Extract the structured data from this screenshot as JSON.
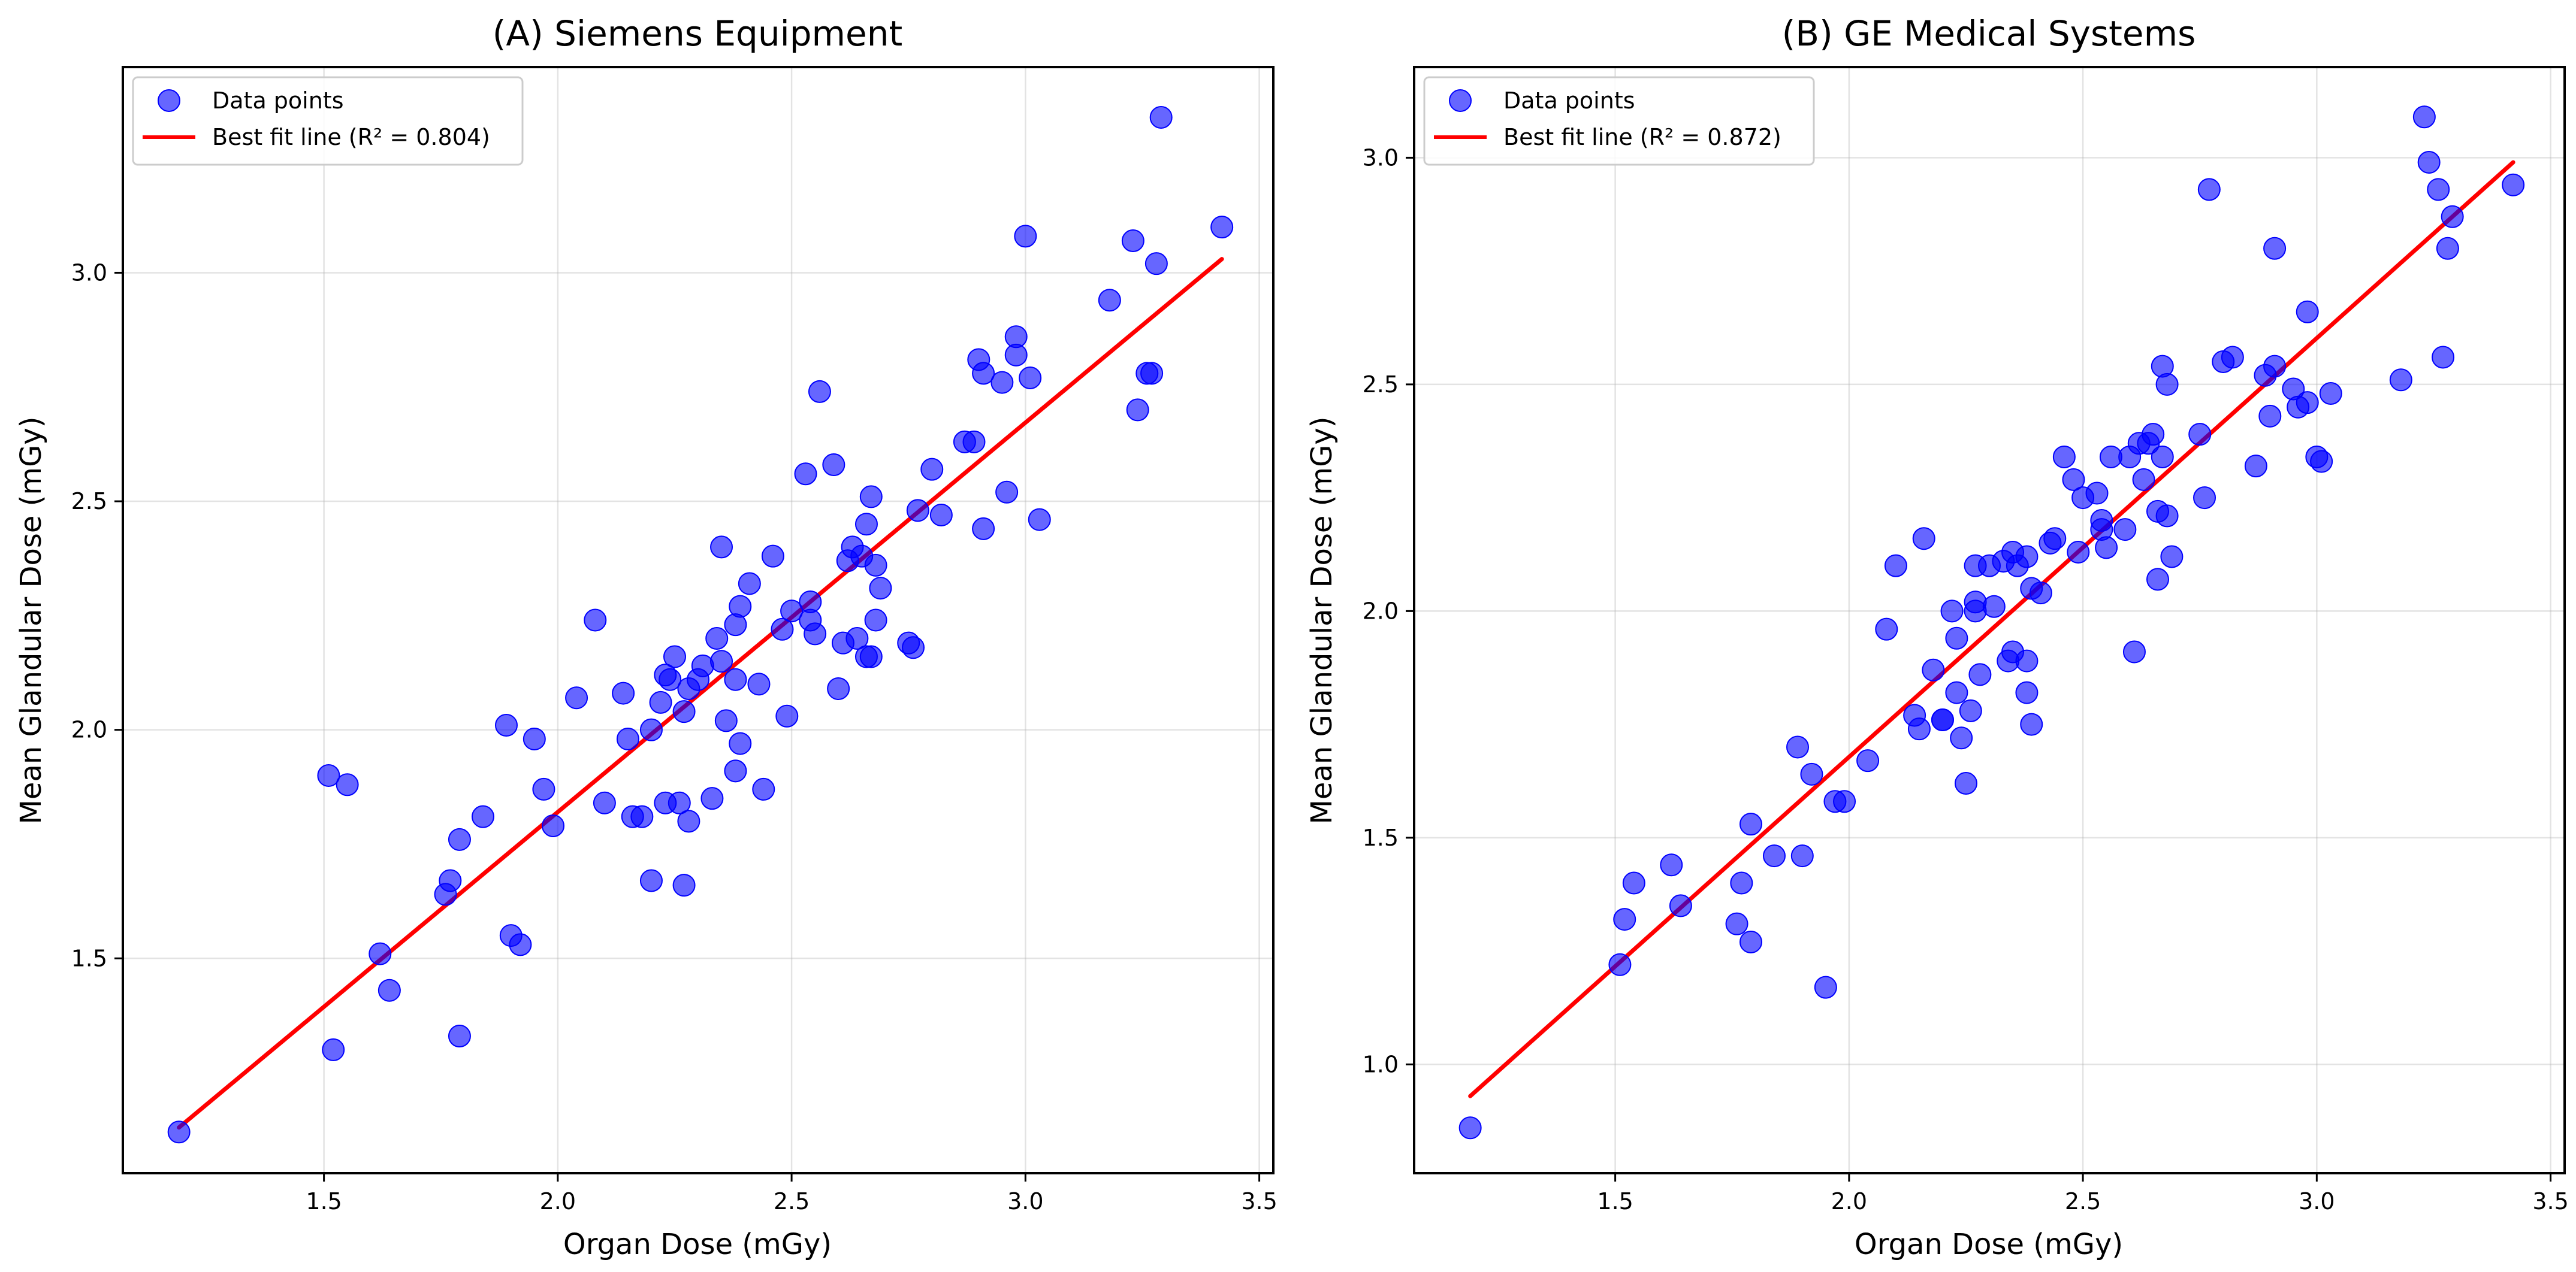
{
  "chart_data": [
    {
      "type": "scatter",
      "title": "(A) Siemens Equipment",
      "xlabel": "Organ Dose (mGy)",
      "ylabel": "Mean Glandular Dose (mGy)",
      "xlim": [
        1.07,
        3.53
      ],
      "ylim": [
        1.03,
        3.45
      ],
      "xticks": [
        1.5,
        2.0,
        2.5,
        3.0,
        3.5
      ],
      "xtick_labels": [
        "1.5",
        "2.0",
        "2.5",
        "3.0",
        "3.5"
      ],
      "yticks": [
        1.5,
        2.0,
        2.5,
        3.0
      ],
      "ytick_labels": [
        "1.5",
        "2.0",
        "2.5",
        "3.0"
      ],
      "grid": true,
      "legend": {
        "position": "top-left",
        "scatter_label": "Data points",
        "line_label": "Best fit line (R² = 0.804)"
      },
      "colors": {
        "points": "#0000ff",
        "line": "#ff0000"
      },
      "fit_line": {
        "x": [
          1.19,
          3.42
        ],
        "y": [
          1.13,
          3.03
        ]
      },
      "points": [
        [
          1.19,
          1.12
        ],
        [
          1.51,
          1.9
        ],
        [
          1.55,
          1.88
        ],
        [
          1.52,
          1.3
        ],
        [
          1.62,
          1.51
        ],
        [
          1.64,
          1.43
        ],
        [
          1.76,
          1.64
        ],
        [
          1.77,
          1.67
        ],
        [
          1.79,
          1.76
        ],
        [
          1.79,
          1.33
        ],
        [
          1.84,
          1.81
        ],
        [
          1.89,
          2.01
        ],
        [
          1.9,
          1.55
        ],
        [
          1.92,
          1.53
        ],
        [
          1.95,
          1.98
        ],
        [
          1.97,
          1.87
        ],
        [
          1.99,
          1.79
        ],
        [
          2.04,
          2.07
        ],
        [
          2.08,
          2.24
        ],
        [
          2.1,
          1.84
        ],
        [
          2.14,
          2.08
        ],
        [
          2.15,
          1.98
        ],
        [
          2.16,
          1.81
        ],
        [
          2.18,
          1.81
        ],
        [
          2.2,
          2.0
        ],
        [
          2.2,
          1.67
        ],
        [
          2.22,
          2.06
        ],
        [
          2.23,
          2.12
        ],
        [
          2.23,
          1.84
        ],
        [
          2.24,
          2.11
        ],
        [
          2.25,
          2.16
        ],
        [
          2.26,
          1.84
        ],
        [
          2.27,
          2.04
        ],
        [
          2.27,
          1.66
        ],
        [
          2.28,
          2.09
        ],
        [
          2.28,
          1.8
        ],
        [
          2.3,
          2.11
        ],
        [
          2.31,
          2.14
        ],
        [
          2.33,
          1.85
        ],
        [
          2.34,
          2.2
        ],
        [
          2.35,
          2.4
        ],
        [
          2.35,
          2.15
        ],
        [
          2.36,
          2.02
        ],
        [
          2.38,
          2.11
        ],
        [
          2.38,
          2.23
        ],
        [
          2.38,
          1.91
        ],
        [
          2.39,
          2.27
        ],
        [
          2.39,
          1.97
        ],
        [
          2.41,
          2.32
        ],
        [
          2.43,
          2.1
        ],
        [
          2.44,
          1.87
        ],
        [
          2.46,
          2.38
        ],
        [
          2.48,
          2.22
        ],
        [
          2.49,
          2.03
        ],
        [
          2.5,
          2.26
        ],
        [
          2.53,
          2.56
        ],
        [
          2.54,
          2.28
        ],
        [
          2.54,
          2.24
        ],
        [
          2.55,
          2.21
        ],
        [
          2.56,
          2.74
        ],
        [
          2.59,
          2.58
        ],
        [
          2.6,
          2.09
        ],
        [
          2.61,
          2.19
        ],
        [
          2.62,
          2.37
        ],
        [
          2.63,
          2.4
        ],
        [
          2.64,
          2.2
        ],
        [
          2.65,
          2.38
        ],
        [
          2.66,
          2.16
        ],
        [
          2.66,
          2.45
        ],
        [
          2.67,
          2.16
        ],
        [
          2.67,
          2.51
        ],
        [
          2.68,
          2.24
        ],
        [
          2.68,
          2.36
        ],
        [
          2.69,
          2.31
        ],
        [
          2.75,
          2.19
        ],
        [
          2.76,
          2.18
        ],
        [
          2.77,
          2.48
        ],
        [
          2.8,
          2.57
        ],
        [
          2.82,
          2.47
        ],
        [
          2.87,
          2.63
        ],
        [
          2.89,
          2.63
        ],
        [
          2.9,
          2.81
        ],
        [
          2.91,
          2.78
        ],
        [
          2.91,
          2.44
        ],
        [
          2.95,
          2.76
        ],
        [
          2.96,
          2.52
        ],
        [
          2.98,
          2.86
        ],
        [
          2.98,
          2.82
        ],
        [
          3.0,
          3.08
        ],
        [
          3.01,
          2.77
        ],
        [
          3.03,
          2.46
        ],
        [
          3.18,
          2.94
        ],
        [
          3.23,
          3.07
        ],
        [
          3.24,
          2.7
        ],
        [
          3.26,
          2.78
        ],
        [
          3.27,
          2.78
        ],
        [
          3.28,
          3.02
        ],
        [
          3.29,
          3.34
        ],
        [
          3.42,
          3.1
        ]
      ]
    },
    {
      "type": "scatter",
      "title": "(B) GE Medical Systems",
      "xlabel": "Organ Dose (mGy)",
      "ylabel": "Mean Glandular Dose (mGy)",
      "xlim": [
        1.07,
        3.53
      ],
      "ylim": [
        0.76,
        3.2
      ],
      "xticks": [
        1.5,
        2.0,
        2.5,
        3.0,
        3.5
      ],
      "xtick_labels": [
        "1.5",
        "2.0",
        "2.5",
        "3.0",
        "3.5"
      ],
      "yticks": [
        1.0,
        1.5,
        2.0,
        2.5,
        3.0
      ],
      "ytick_labels": [
        "1.0",
        "1.5",
        "2.0",
        "2.5",
        "3.0"
      ],
      "grid": true,
      "legend": {
        "position": "top-left",
        "scatter_label": "Data points",
        "line_label": "Best fit line (R² = 0.872)"
      },
      "colors": {
        "points": "#0000ff",
        "line": "#ff0000"
      },
      "fit_line": {
        "x": [
          1.19,
          3.42
        ],
        "y": [
          0.93,
          2.99
        ]
      },
      "points": [
        [
          1.19,
          0.86
        ],
        [
          1.51,
          1.22
        ],
        [
          1.52,
          1.32
        ],
        [
          1.54,
          1.4
        ],
        [
          1.62,
          1.44
        ],
        [
          1.64,
          1.35
        ],
        [
          1.77,
          1.4
        ],
        [
          1.76,
          1.31
        ],
        [
          1.79,
          1.53
        ],
        [
          1.79,
          1.27
        ],
        [
          1.84,
          1.46
        ],
        [
          1.89,
          1.7
        ],
        [
          1.9,
          1.46
        ],
        [
          1.92,
          1.64
        ],
        [
          1.95,
          1.17
        ],
        [
          1.97,
          1.58
        ],
        [
          1.99,
          1.58
        ],
        [
          2.04,
          1.67
        ],
        [
          2.08,
          1.96
        ],
        [
          2.1,
          2.1
        ],
        [
          2.14,
          1.77
        ],
        [
          2.15,
          1.74
        ],
        [
          2.16,
          2.16
        ],
        [
          2.18,
          1.87
        ],
        [
          2.2,
          1.76
        ],
        [
          2.2,
          1.76
        ],
        [
          2.22,
          2.0
        ],
        [
          2.23,
          1.82
        ],
        [
          2.23,
          1.94
        ],
        [
          2.24,
          1.72
        ],
        [
          2.25,
          1.62
        ],
        [
          2.26,
          1.78
        ],
        [
          2.27,
          2.0
        ],
        [
          2.27,
          2.1
        ],
        [
          2.27,
          2.02
        ],
        [
          2.28,
          1.86
        ],
        [
          2.3,
          2.1
        ],
        [
          2.31,
          2.01
        ],
        [
          2.33,
          2.11
        ],
        [
          2.34,
          1.89
        ],
        [
          2.35,
          1.91
        ],
        [
          2.35,
          2.13
        ],
        [
          2.36,
          2.1
        ],
        [
          2.38,
          2.12
        ],
        [
          2.38,
          1.89
        ],
        [
          2.38,
          1.82
        ],
        [
          2.39,
          1.75
        ],
        [
          2.39,
          2.05
        ],
        [
          2.41,
          2.04
        ],
        [
          2.43,
          2.15
        ],
        [
          2.44,
          2.16
        ],
        [
          2.46,
          2.34
        ],
        [
          2.48,
          2.29
        ],
        [
          2.49,
          2.13
        ],
        [
          2.5,
          2.25
        ],
        [
          2.53,
          2.26
        ],
        [
          2.54,
          2.18
        ],
        [
          2.54,
          2.2
        ],
        [
          2.55,
          2.14
        ],
        [
          2.56,
          2.34
        ],
        [
          2.59,
          2.18
        ],
        [
          2.6,
          2.34
        ],
        [
          2.61,
          1.91
        ],
        [
          2.62,
          2.37
        ],
        [
          2.63,
          2.29
        ],
        [
          2.64,
          2.37
        ],
        [
          2.65,
          2.39
        ],
        [
          2.66,
          2.22
        ],
        [
          2.66,
          2.07
        ],
        [
          2.67,
          2.34
        ],
        [
          2.67,
          2.54
        ],
        [
          2.68,
          2.21
        ],
        [
          2.68,
          2.5
        ],
        [
          2.69,
          2.12
        ],
        [
          2.75,
          2.39
        ],
        [
          2.76,
          2.25
        ],
        [
          2.77,
          2.93
        ],
        [
          2.8,
          2.55
        ],
        [
          2.82,
          2.56
        ],
        [
          2.87,
          2.32
        ],
        [
          2.89,
          2.52
        ],
        [
          2.9,
          2.43
        ],
        [
          2.91,
          2.8
        ],
        [
          2.91,
          2.54
        ],
        [
          2.95,
          2.49
        ],
        [
          2.96,
          2.45
        ],
        [
          2.98,
          2.46
        ],
        [
          2.98,
          2.66
        ],
        [
          3.0,
          2.34
        ],
        [
          3.01,
          2.33
        ],
        [
          3.03,
          2.48
        ],
        [
          3.18,
          2.51
        ],
        [
          3.23,
          3.09
        ],
        [
          3.24,
          2.99
        ],
        [
          3.26,
          2.93
        ],
        [
          3.27,
          2.56
        ],
        [
          3.28,
          2.8
        ],
        [
          3.29,
          2.87
        ],
        [
          3.42,
          2.94
        ]
      ]
    }
  ]
}
